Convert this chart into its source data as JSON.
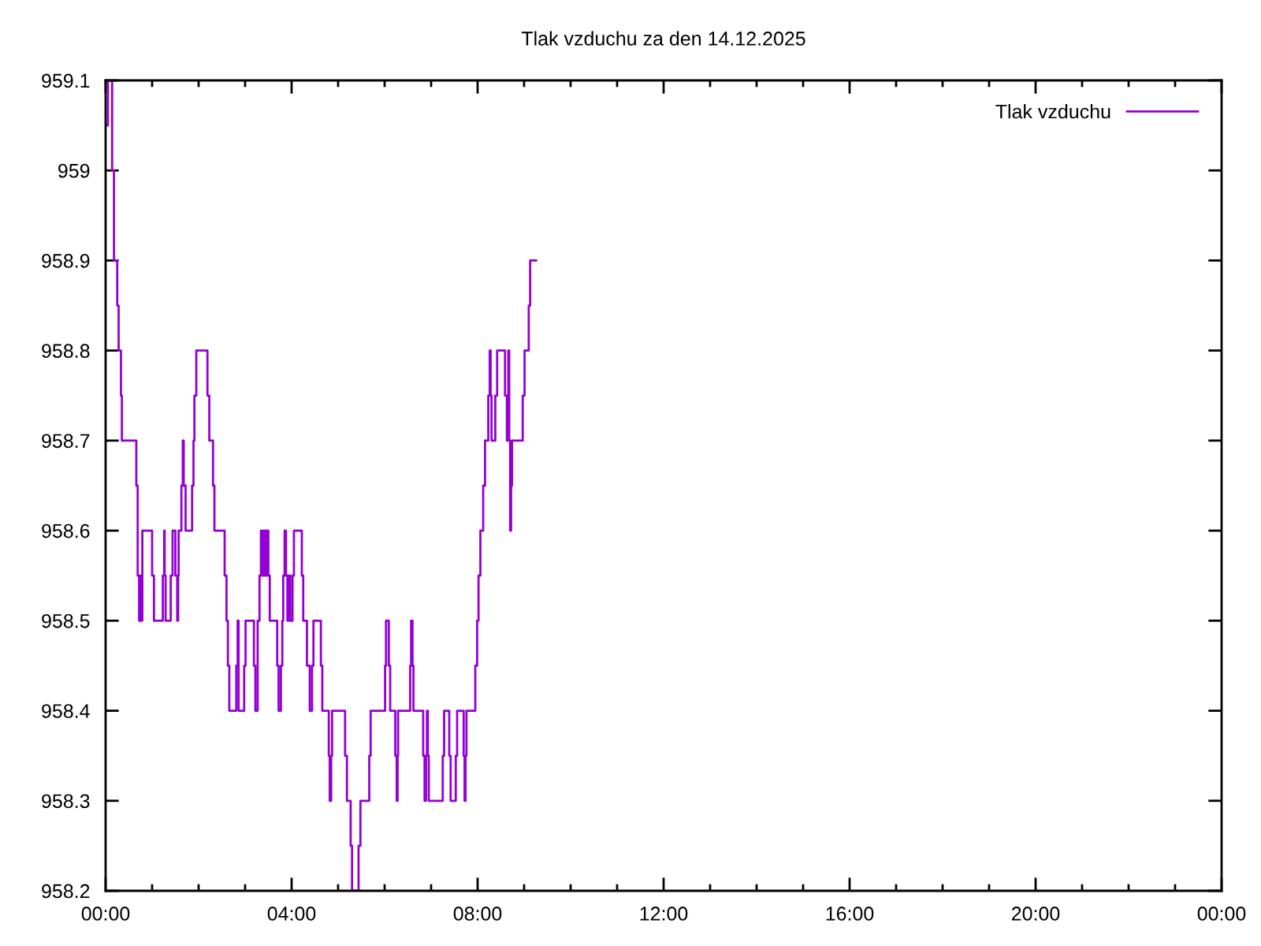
{
  "chart_data": {
    "type": "step",
    "title": "Tlak vzduchu za den 14.12.2025",
    "xlim": [
      0,
      24
    ],
    "xticks": [
      {
        "value": 0,
        "label": "00:00"
      },
      {
        "value": 1,
        "label": null
      },
      {
        "value": 2,
        "label": null
      },
      {
        "value": 3,
        "label": null
      },
      {
        "value": 4,
        "label": "04:00"
      },
      {
        "value": 5,
        "label": null
      },
      {
        "value": 6,
        "label": null
      },
      {
        "value": 7,
        "label": null
      },
      {
        "value": 8,
        "label": "08:00"
      },
      {
        "value": 9,
        "label": null
      },
      {
        "value": 10,
        "label": null
      },
      {
        "value": 11,
        "label": null
      },
      {
        "value": 12,
        "label": "12:00"
      },
      {
        "value": 13,
        "label": null
      },
      {
        "value": 14,
        "label": null
      },
      {
        "value": 15,
        "label": null
      },
      {
        "value": 16,
        "label": "16:00"
      },
      {
        "value": 17,
        "label": null
      },
      {
        "value": 18,
        "label": null
      },
      {
        "value": 19,
        "label": null
      },
      {
        "value": 20,
        "label": "20:00"
      },
      {
        "value": 21,
        "label": null
      },
      {
        "value": 22,
        "label": null
      },
      {
        "value": 23,
        "label": null
      },
      {
        "value": 24,
        "label": "00:00"
      }
    ],
    "ylim": [
      958.2,
      959.1
    ],
    "yticks": [
      958.2,
      958.3,
      958.4,
      958.5,
      958.6,
      958.7,
      958.8,
      958.9,
      959,
      959.1
    ],
    "legend": "top right",
    "series": [
      {
        "name": "Tlak vzduchu",
        "color": "#9400d3",
        "x": [
          0.0,
          0.05,
          0.14,
          0.18,
          0.25,
          0.28,
          0.33,
          0.35,
          0.66,
          0.69,
          0.72,
          0.74,
          0.76,
          0.79,
          1.0,
          1.04,
          1.23,
          1.26,
          1.27,
          1.29,
          1.4,
          1.44,
          1.5,
          1.54,
          1.56,
          1.57,
          1.63,
          1.66,
          1.68,
          1.72,
          1.86,
          1.89,
          1.91,
          1.95,
          2.19,
          2.23,
          2.31,
          2.34,
          2.56,
          2.6,
          2.63,
          2.66,
          2.81,
          2.84,
          2.86,
          2.98,
          3.01,
          3.19,
          3.22,
          3.27,
          3.31,
          3.34,
          3.36,
          3.38,
          3.4,
          3.42,
          3.45,
          3.47,
          3.5,
          3.53,
          3.69,
          3.72,
          3.77,
          3.8,
          3.82,
          3.85,
          3.88,
          3.91,
          3.94,
          3.97,
          4.02,
          4.05,
          4.22,
          4.25,
          4.33,
          4.39,
          4.44,
          4.47,
          4.63,
          4.66,
          4.8,
          4.82,
          4.85,
          4.87,
          5.15,
          5.19,
          5.27,
          5.3,
          5.44,
          5.48,
          5.67,
          5.7,
          6.01,
          6.03,
          6.09,
          6.12,
          6.23,
          6.26,
          6.28,
          6.29,
          6.55,
          6.57,
          6.6,
          6.62,
          6.83,
          6.86,
          6.89,
          6.91,
          6.93,
          6.95,
          7.25,
          7.28,
          7.39,
          7.42,
          7.53,
          7.56,
          7.7,
          7.72,
          7.74,
          7.76,
          7.95,
          7.99,
          8.02,
          8.06,
          8.12,
          8.16,
          8.23,
          8.26,
          8.28,
          8.3,
          8.38,
          8.42,
          8.59,
          8.63,
          8.65,
          8.66,
          8.68,
          8.7,
          8.72,
          8.74,
          8.97,
          9.01,
          9.1,
          9.13,
          9.26
        ],
        "values": [
          959.05,
          959.1,
          959.0,
          958.9,
          958.85,
          958.8,
          958.75,
          958.7,
          958.65,
          958.55,
          958.5,
          958.55,
          958.5,
          958.6,
          958.55,
          958.5,
          958.55,
          958.6,
          958.55,
          958.5,
          958.55,
          958.6,
          958.55,
          958.5,
          958.55,
          958.6,
          958.65,
          958.7,
          958.65,
          958.6,
          958.65,
          958.7,
          958.75,
          958.8,
          958.75,
          958.7,
          958.65,
          958.6,
          958.55,
          958.5,
          958.45,
          958.4,
          958.45,
          958.5,
          958.4,
          958.45,
          958.5,
          958.45,
          958.4,
          958.5,
          958.55,
          958.6,
          958.55,
          958.6,
          958.55,
          958.6,
          958.55,
          958.6,
          958.55,
          958.5,
          958.45,
          958.4,
          958.45,
          958.5,
          958.55,
          958.6,
          958.55,
          958.5,
          958.55,
          958.5,
          958.55,
          958.6,
          958.55,
          958.5,
          958.45,
          958.4,
          958.45,
          958.5,
          958.45,
          958.4,
          958.35,
          958.3,
          958.35,
          958.4,
          958.35,
          958.3,
          958.25,
          958.2,
          958.25,
          958.3,
          958.35,
          958.4,
          958.45,
          958.5,
          958.45,
          958.4,
          958.35,
          958.3,
          958.35,
          958.4,
          958.45,
          958.5,
          958.45,
          958.4,
          958.35,
          958.3,
          958.35,
          958.4,
          958.35,
          958.3,
          958.35,
          958.4,
          958.35,
          958.3,
          958.35,
          958.4,
          958.35,
          958.3,
          958.35,
          958.4,
          958.45,
          958.5,
          958.55,
          958.6,
          958.65,
          958.7,
          958.75,
          958.8,
          958.75,
          958.7,
          958.75,
          958.8,
          958.75,
          958.7,
          958.75,
          958.8,
          958.7,
          958.6,
          958.65,
          958.7,
          958.75,
          958.8,
          958.85,
          958.9,
          958.9
        ]
      }
    ]
  }
}
